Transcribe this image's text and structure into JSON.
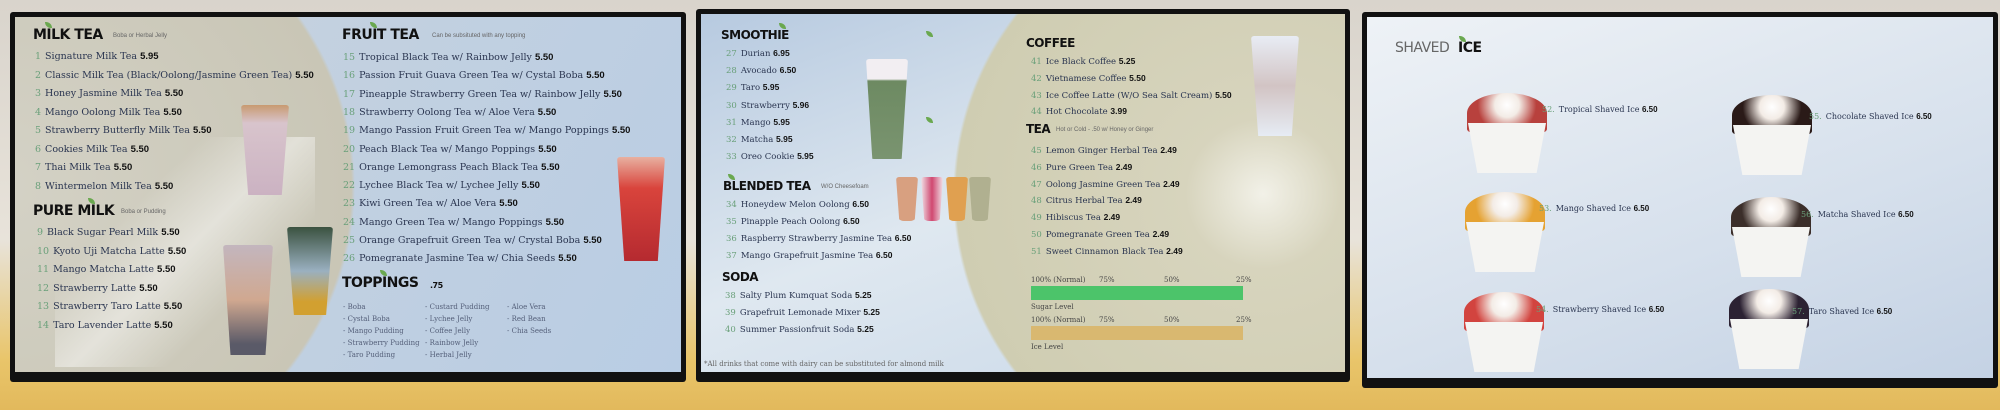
{
  "screen1": {
    "milk_tea": {
      "title": "MILK TEA",
      "subtitle": "Boba or Herbal Jelly",
      "items": [
        {
          "n": "1",
          "name": "Signature Milk Tea",
          "price": "5.95"
        },
        {
          "n": "2",
          "name": "Classic Milk Tea (Black/Oolong/Jasmine Green Tea)",
          "price": "5.50"
        },
        {
          "n": "3",
          "name": "Honey Jasmine Milk Tea",
          "price": "5.50"
        },
        {
          "n": "4",
          "name": "Mango Oolong Milk Tea",
          "price": "5.50"
        },
        {
          "n": "5",
          "name": "Strawberry Butterfly Milk Tea",
          "price": "5.50"
        },
        {
          "n": "6",
          "name": "Cookies Milk Tea",
          "price": "5.50"
        },
        {
          "n": "7",
          "name": "Thai Milk Tea",
          "price": "5.50"
        },
        {
          "n": "8",
          "name": "Wintermelon Milk Tea",
          "price": "5.50"
        }
      ]
    },
    "pure_milk": {
      "title": "PURE MILK",
      "subtitle": "Boba or Pudding",
      "items": [
        {
          "n": "9",
          "name": "Black Sugar Pearl Milk",
          "price": "5.50"
        },
        {
          "n": "10",
          "name": "Kyoto Uji Matcha Latte",
          "price": "5.50"
        },
        {
          "n": "11",
          "name": "Mango Matcha Latte",
          "price": "5.50"
        },
        {
          "n": "12",
          "name": "Strawberry Latte",
          "price": "5.50"
        },
        {
          "n": "13",
          "name": "Strawberry Taro Latte",
          "price": "5.50"
        },
        {
          "n": "14",
          "name": "Taro Lavender Latte",
          "price": "5.50"
        }
      ]
    },
    "fruit_tea": {
      "title": "FRUIT TEA",
      "subtitle": "Can be subsituted with any topping",
      "items": [
        {
          "n": "15",
          "name": "Tropical Black Tea w/ Rainbow Jelly",
          "price": "5.50"
        },
        {
          "n": "16",
          "name": "Passion Fruit Guava Green Tea w/ Cystal Boba",
          "price": "5.50"
        },
        {
          "n": "17",
          "name": "Pineapple Strawberry Green Tea w/ Rainbow Jelly",
          "price": "5.50"
        },
        {
          "n": "18",
          "name": "Strawberry Oolong Tea w/ Aloe Vera",
          "price": "5.50"
        },
        {
          "n": "19",
          "name": "Mango Passion Fruit Green Tea w/ Mango Poppings",
          "price": "5.50"
        },
        {
          "n": "20",
          "name": "Peach Black Tea w/ Mango Poppings",
          "price": "5.50"
        },
        {
          "n": "21",
          "name": "Orange Lemongrass Peach Black Tea",
          "price": "5.50"
        },
        {
          "n": "22",
          "name": "Lychee Black Tea w/ Lychee Jelly",
          "price": "5.50"
        },
        {
          "n": "23",
          "name": "Kiwi Green Tea w/ Aloe Vera",
          "price": "5.50"
        },
        {
          "n": "24",
          "name": "Mango Green Tea w/ Mango Poppings",
          "price": "5.50"
        },
        {
          "n": "25",
          "name": "Orange Grapefruit Green Tea w/ Crystal Boba",
          "price": "5.50"
        },
        {
          "n": "26",
          "name": "Pomegranate Jasmine Tea w/ Chia Seeds",
          "price": "5.50"
        }
      ]
    },
    "toppings": {
      "title": "TOPPINGS",
      "price": ".75",
      "columns": [
        [
          "- Boba",
          "- Cystal Boba",
          "- Mango Pudding",
          "- Strawberry Pudding",
          "- Taro Pudding"
        ],
        [
          "- Custard Pudding",
          "- Lychee Jelly",
          "- Coffee Jelly",
          "- Rainbow Jelly",
          "- Herbal Jelly"
        ],
        [
          "- Aloe Vera",
          "- Red Bean",
          "- Chia Seeds"
        ]
      ]
    }
  },
  "screen2": {
    "smoothie": {
      "title": "SMOOTHIE",
      "items": [
        {
          "n": "27",
          "name": "Durian",
          "price": "6.95"
        },
        {
          "n": "28",
          "name": "Avocado",
          "price": "6.50"
        },
        {
          "n": "29",
          "name": "Taro",
          "price": "5.95"
        },
        {
          "n": "30",
          "name": "Strawberry",
          "price": "5.96"
        },
        {
          "n": "31",
          "name": "Mango",
          "price": "5.95"
        },
        {
          "n": "32",
          "name": "Matcha",
          "price": "5.95"
        },
        {
          "n": "33",
          "name": "Oreo Cookie",
          "price": "5.95"
        }
      ]
    },
    "blended_tea": {
      "title": "BLENDED TEA",
      "subtitle": "W/O Cheesefoam",
      "items": [
        {
          "n": "34",
          "name": "Honeydew Melon Oolong",
          "price": "6.50"
        },
        {
          "n": "35",
          "name": "Pinapple Peach Oolong",
          "price": "6.50"
        },
        {
          "n": "36",
          "name": "Raspberry Strawberry Jasmine Tea",
          "price": "6.50"
        },
        {
          "n": "37",
          "name": "Mango Grapefruit Jasmine Tea",
          "price": "6.50"
        }
      ]
    },
    "soda": {
      "title": "SODA",
      "items": [
        {
          "n": "38",
          "name": "Salty Plum Kumquat Soda",
          "price": "5.25"
        },
        {
          "n": "39",
          "name": "Grapefruit Lemonade Mixer",
          "price": "5.25"
        },
        {
          "n": "40",
          "name": "Summer Passionfruit Soda",
          "price": "5.25"
        }
      ]
    },
    "coffee": {
      "title": "COFFEE",
      "items": [
        {
          "n": "41",
          "name": "Ice Black Coffee",
          "price": "5.25"
        },
        {
          "n": "42",
          "name": "Vietnamese Coffee",
          "price": "5.50"
        },
        {
          "n": "43",
          "name": "Ice Coffee Latte (W/O Sea Salt Cream)",
          "price": "5.50"
        },
        {
          "n": "44",
          "name": "Hot Chocolate",
          "price": "3.99"
        }
      ]
    },
    "tea": {
      "title": "TEA",
      "subtitle": "Hot or Cold  -  .50 w/ Honey or Ginger",
      "items": [
        {
          "n": "45",
          "name": "Lemon Ginger Herbal Tea",
          "price": "2.49"
        },
        {
          "n": "46",
          "name": "Pure Green Tea",
          "price": "2.49"
        },
        {
          "n": "47",
          "name": "Oolong Jasmine Green Tea",
          "price": "2.49"
        },
        {
          "n": "48",
          "name": "Citrus Herbal Tea",
          "price": "2.49"
        },
        {
          "n": "49",
          "name": "Hibiscus Tea",
          "price": "2.49"
        },
        {
          "n": "50",
          "name": "Pomegranate Green Tea",
          "price": "2.49"
        },
        {
          "n": "51",
          "name": "Sweet Cinnamon Black Tea",
          "price": "2.49"
        }
      ]
    },
    "sugar": {
      "ticks": [
        "100% (Normal)",
        "75%",
        "50%",
        "25%"
      ],
      "label": "Sugar Level",
      "color": "#4cc46a"
    },
    "ice": {
      "ticks": [
        "100% (Normal)",
        "75%",
        "50%",
        "25%"
      ],
      "label": "Ice Level",
      "color": "#d9b870"
    },
    "footnote": "*All drinks that come with dairy can be substituted for almond milk"
  },
  "screen3": {
    "title_a": "SHAVED",
    "title_b": "ICE",
    "items": [
      {
        "n": "52.",
        "name": "Tropical Shaved Ice",
        "price": "6.50",
        "topping": "#b8413d"
      },
      {
        "n": "55.",
        "name": "Chocolate Shaved Ice",
        "price": "6.50",
        "topping": "#2a1a18"
      },
      {
        "n": "53.",
        "name": "Mango Shaved Ice",
        "price": "6.50",
        "topping": "#e5a232"
      },
      {
        "n": "56.",
        "name": "Matcha Shaved Ice",
        "price": "6.50",
        "topping": "#3b2e2a"
      },
      {
        "n": "54.",
        "name": "Strawberry Shaved Ice",
        "price": "6.50",
        "topping": "#d2443f"
      },
      {
        "n": "57.",
        "name": "Taro Shaved Ice",
        "price": "6.50",
        "topping": "#2c2233"
      }
    ]
  },
  "colors": {
    "accent_green": "#6aa84f",
    "number_green": "#6aa07a",
    "beige": "#d6d3bd",
    "screen_blue": "#c7d6e8"
  }
}
